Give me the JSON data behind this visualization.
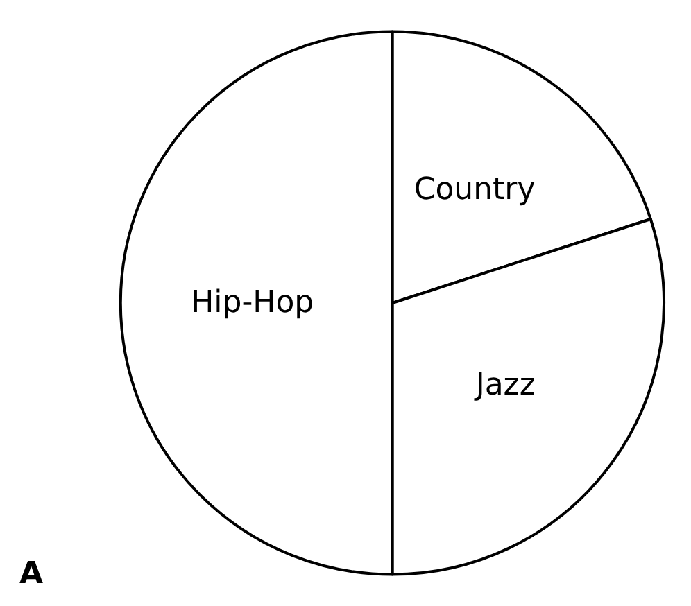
{
  "chart_data": {
    "type": "pie",
    "categories": [
      "Country",
      "Jazz",
      "Hip-Hop"
    ],
    "values": [
      20,
      30,
      50
    ],
    "colors": [
      "#ffffff",
      "#ffffff",
      "#ffffff"
    ],
    "annotations": [
      "A"
    ],
    "legend": false
  }
}
